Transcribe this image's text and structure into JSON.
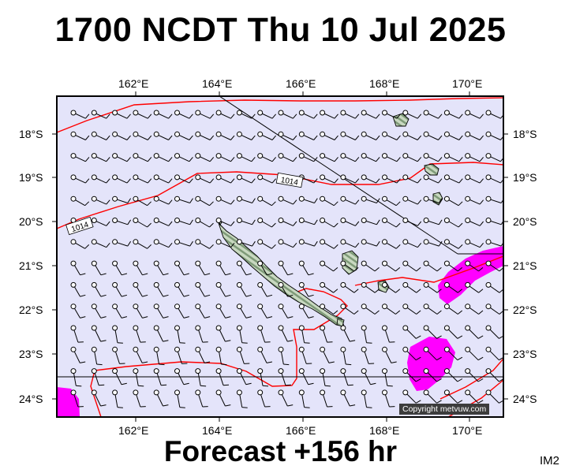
{
  "title": "1700 NCDT Thu 10 Jul 2025",
  "forecast_label": "Forecast +156 hr",
  "corner_label": "IM2",
  "copyright": "Copyright metvuw.com",
  "lon_labels": [
    "162°E",
    "164°E",
    "166°E",
    "168°E",
    "170°E"
  ],
  "lat_labels": [
    "18°S",
    "19°S",
    "20°S",
    "21°S",
    "22°S",
    "23°S",
    "24°S"
  ],
  "isobar_labels": [
    "1014",
    "1014"
  ],
  "colors": {
    "ocean": "#e4e4fa",
    "isobar": "#ff0000",
    "heavy_rain": "#ff00ff",
    "land": "#b8ccb0",
    "wind_barb": "#000000"
  },
  "icons": {
    "wind_barb": "circle-with-staff",
    "land": "island-shading"
  }
}
